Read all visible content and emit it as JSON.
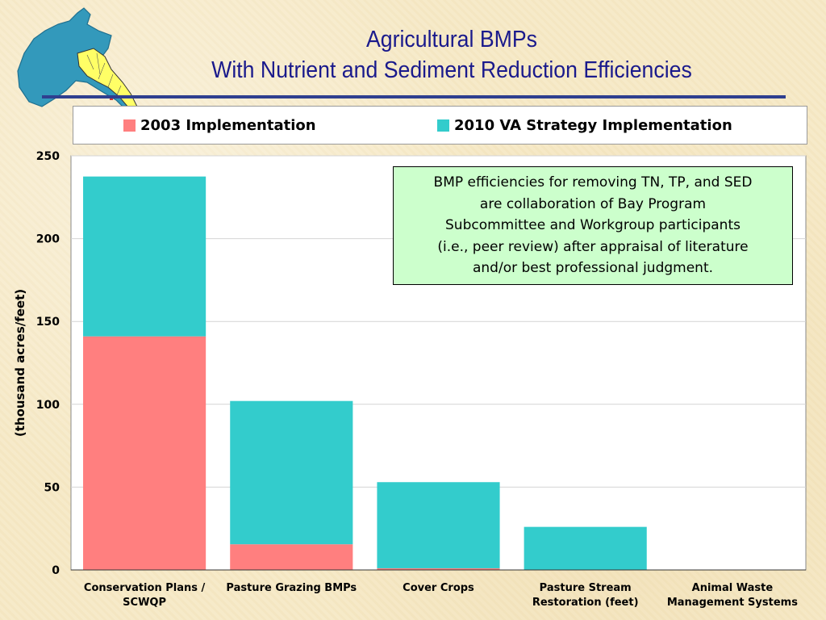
{
  "title_lines": [
    "Agricultural BMPs",
    "With Nutrient and Sediment Reduction Efficiencies"
  ],
  "legend": [
    {
      "label": "2003 Implementation",
      "color": "#ff7f7f"
    },
    {
      "label": "2010 VA Strategy Implementation",
      "color": "#33cccc"
    }
  ],
  "note_lines": [
    "BMP efficiencies for removing TN, TP, and SED",
    "are collaboration of Bay Program",
    "Subcommittee and Workgroup participants",
    "(i.e., peer review) after appraisal of literature",
    "and/or best professional judgment."
  ],
  "colors": {
    "map_land": "#3399bb",
    "map_virginia": "#ffff66",
    "title": "#1a1a8c",
    "rule": "#2f3f8f"
  },
  "chart_data": {
    "type": "bar",
    "stacked": true,
    "categories": [
      [
        "Conservation Plans /",
        "SCWQP"
      ],
      [
        "Pasture Grazing BMPs"
      ],
      [
        "Cover Crops"
      ],
      [
        "Pasture Stream",
        "Restoration (feet)"
      ],
      [
        "Animal Waste",
        "Management Systems"
      ]
    ],
    "series": [
      {
        "name": "2003 Implementation",
        "values": [
          141,
          15.5,
          1,
          0,
          0
        ],
        "color": "#ff7f7f"
      },
      {
        "name": "2010 VA Strategy Implementation",
        "values": [
          96.5,
          86.5,
          52,
          26,
          0
        ],
        "color": "#33cccc"
      }
    ],
    "ylabel": "(thousand acres/feet)",
    "ylim": [
      0,
      250
    ],
    "yticks": [
      0,
      50,
      100,
      150,
      200,
      250
    ],
    "grid": true,
    "legend_position": "top"
  }
}
